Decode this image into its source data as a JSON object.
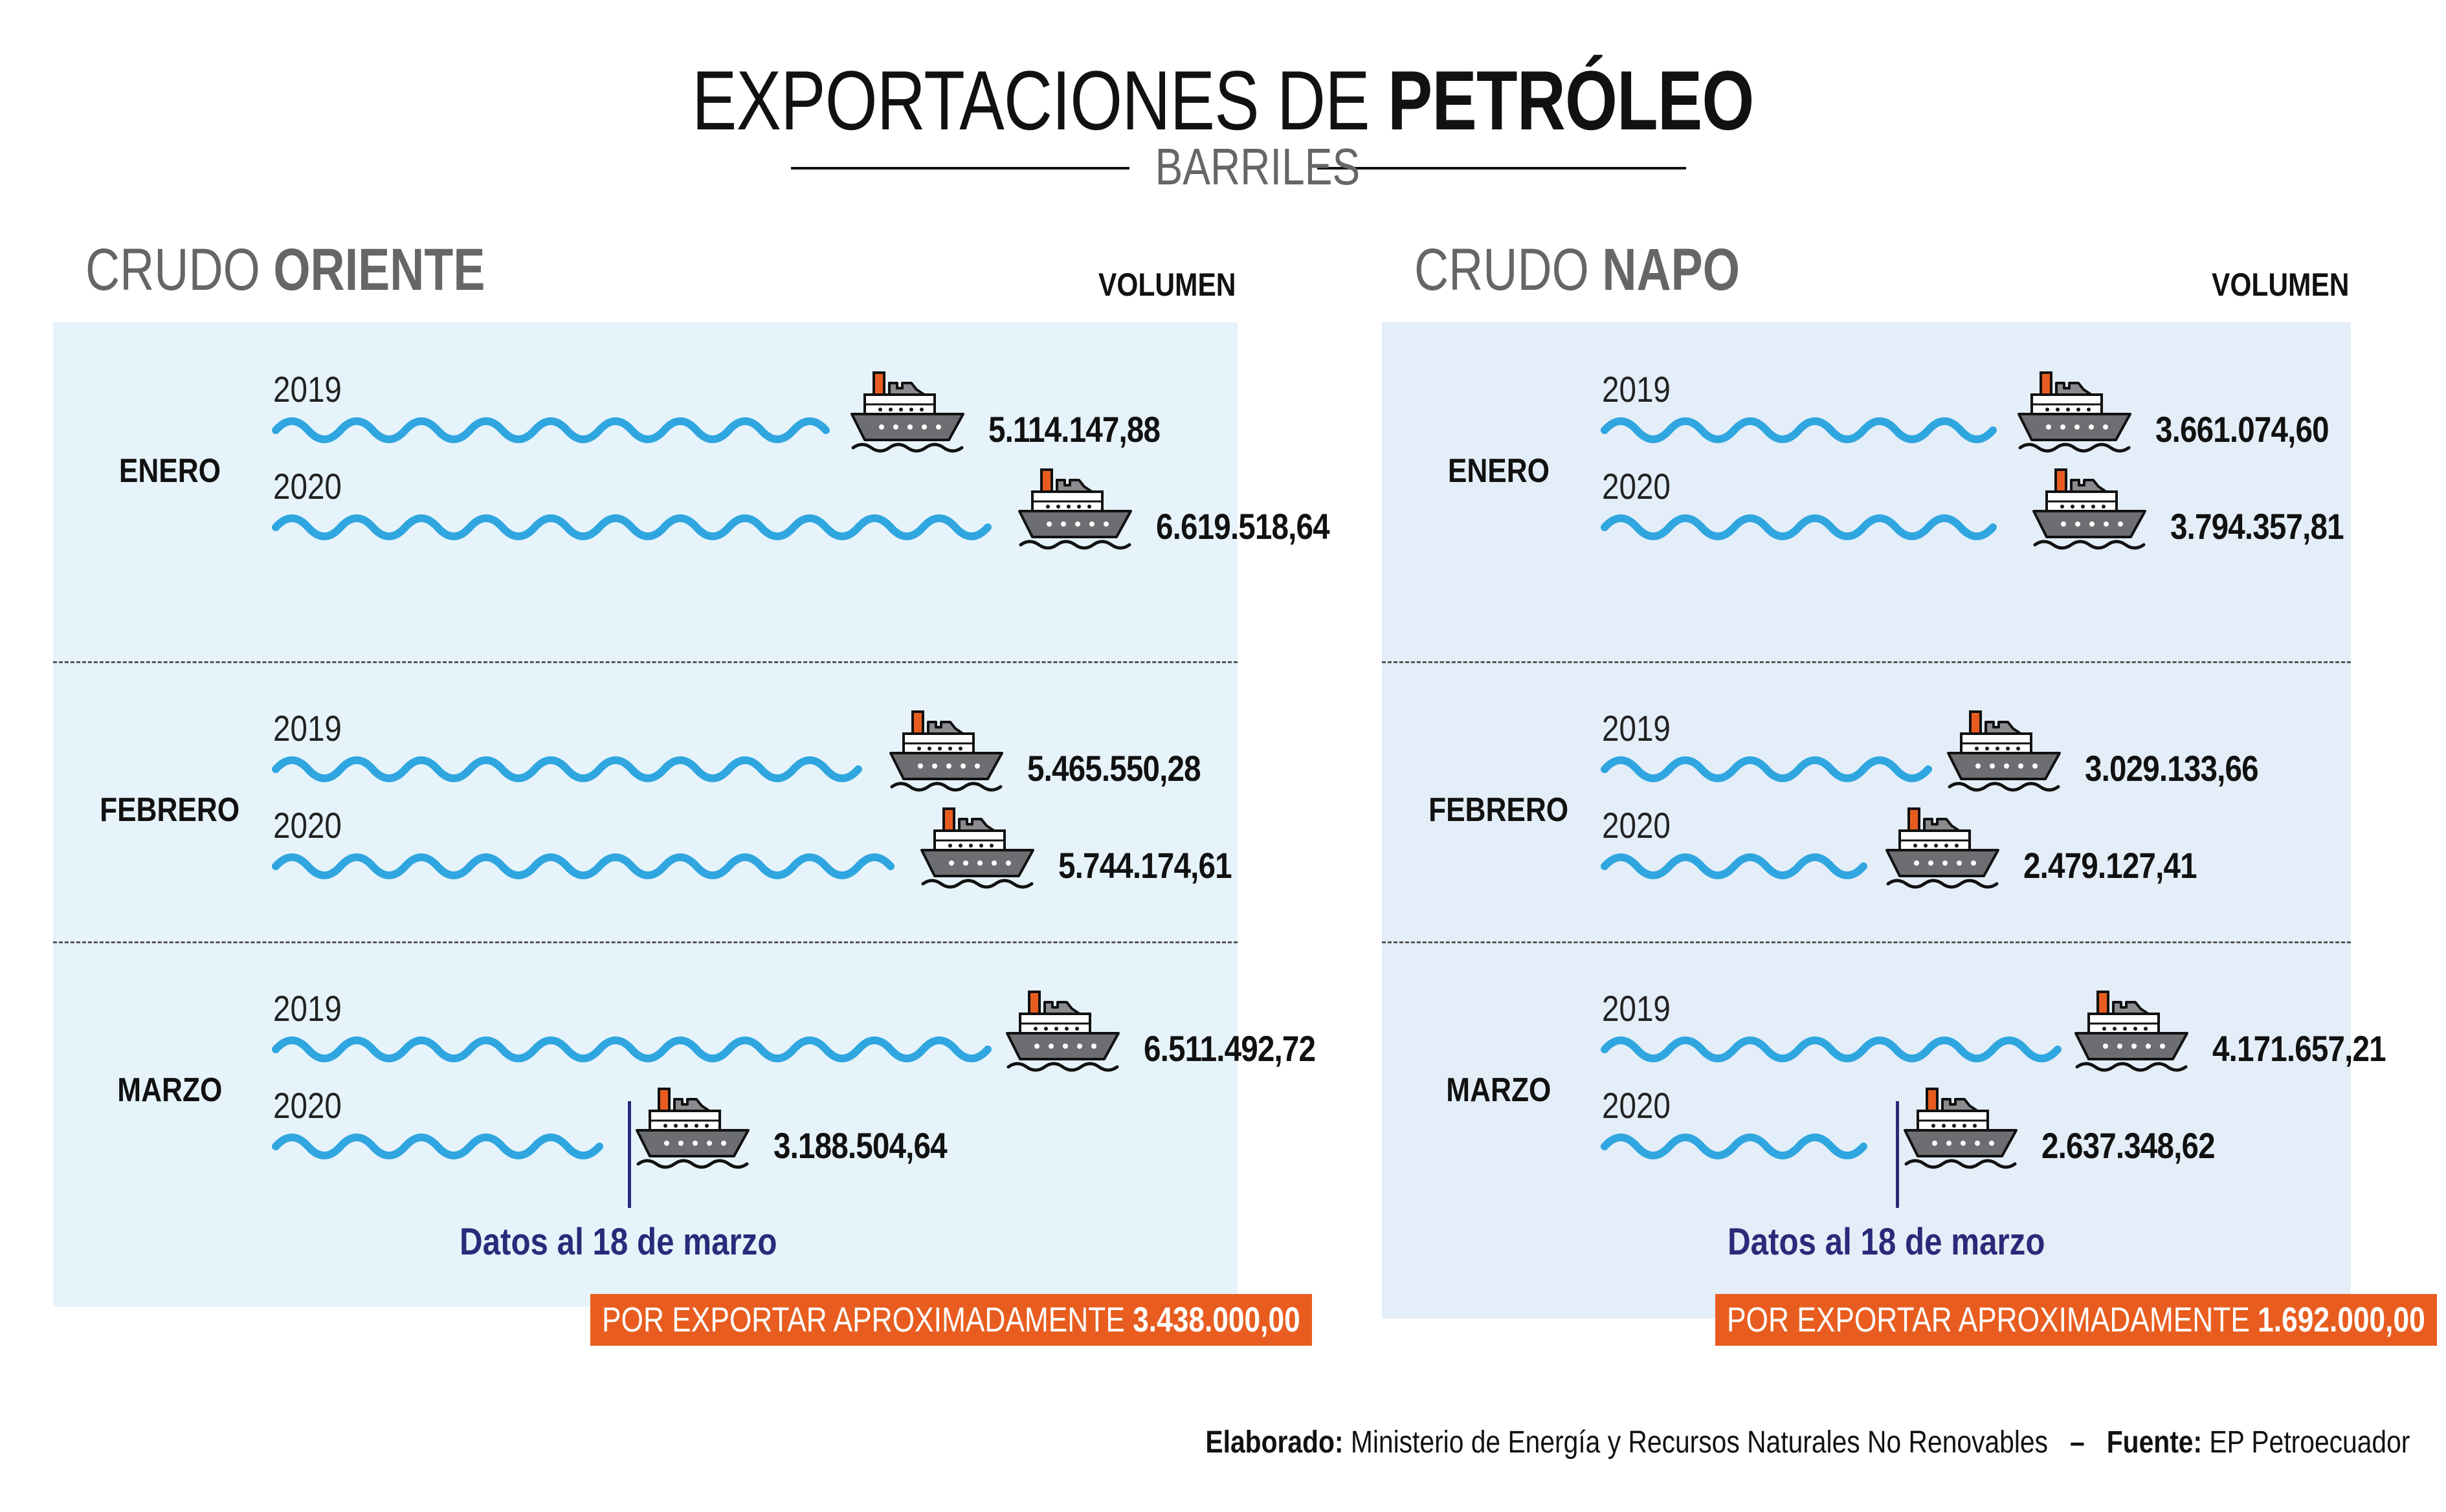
{
  "header": {
    "title_light": "EXPORTACIONES DE",
    "title_bold": "PETRÓLEO",
    "subtitle": "BARRILES"
  },
  "column_header": "VOLUMEN",
  "cutoff_note": "Datos al 18 de marzo",
  "footer": {
    "made_label": "Elaborado:",
    "made_by": "Ministerio de Energía y Recursos Naturales No Renovables",
    "separator": "–",
    "source_label": "Fuente:",
    "source": "EP Petroecuador"
  },
  "colors": {
    "oriente_bg": "#e6f3fb",
    "napo_bg": "#e4eef8",
    "wave": "#2fa6df",
    "accent": "#e85d1f",
    "note": "#2a2a7a",
    "ship_hull": "#6d6e71",
    "ship_funnel": "#e85d1f"
  },
  "icons": {
    "ship": "cargo-ship-icon",
    "wave": "wave-line"
  },
  "chart_data": [
    {
      "type": "bar",
      "title_light": "CRUDO",
      "title_bold": "ORIENTE",
      "categories": [
        "ENERO",
        "FEBRERO",
        "MARZO"
      ],
      "series": [
        {
          "name": "2019",
          "values": [
            5114147.88,
            5465550.28,
            6511492.72
          ],
          "labels": [
            "5.114.147,88",
            "5.465.550,28",
            "6.511.492,72"
          ]
        },
        {
          "name": "2020",
          "values": [
            6619518.64,
            5744174.61,
            3188504.64
          ],
          "labels": [
            "6.619.518,64",
            "5.744.174,61",
            "3.188.504,64"
          ]
        }
      ],
      "pending_label": "POR EXPORTAR APROXIMADAMENTE",
      "pending_value": "3.438.000,00"
    },
    {
      "type": "bar",
      "title_light": "CRUDO",
      "title_bold": "NAPO",
      "categories": [
        "ENERO",
        "FEBRERO",
        "MARZO"
      ],
      "series": [
        {
          "name": "2019",
          "values": [
            3661074.6,
            3029133.66,
            4171657.21
          ],
          "labels": [
            "3.661.074,60",
            "3.029.133,66",
            "4.171.657,21"
          ]
        },
        {
          "name": "2020",
          "values": [
            3794357.81,
            2479127.41,
            2637348.62
          ],
          "labels": [
            "3.794.357,81",
            "2.479.127,41",
            "2.637.348,62"
          ]
        }
      ],
      "pending_label": "POR EXPORTAR APROXIMADAMENTE",
      "pending_value": "1.692.000,00"
    }
  ]
}
